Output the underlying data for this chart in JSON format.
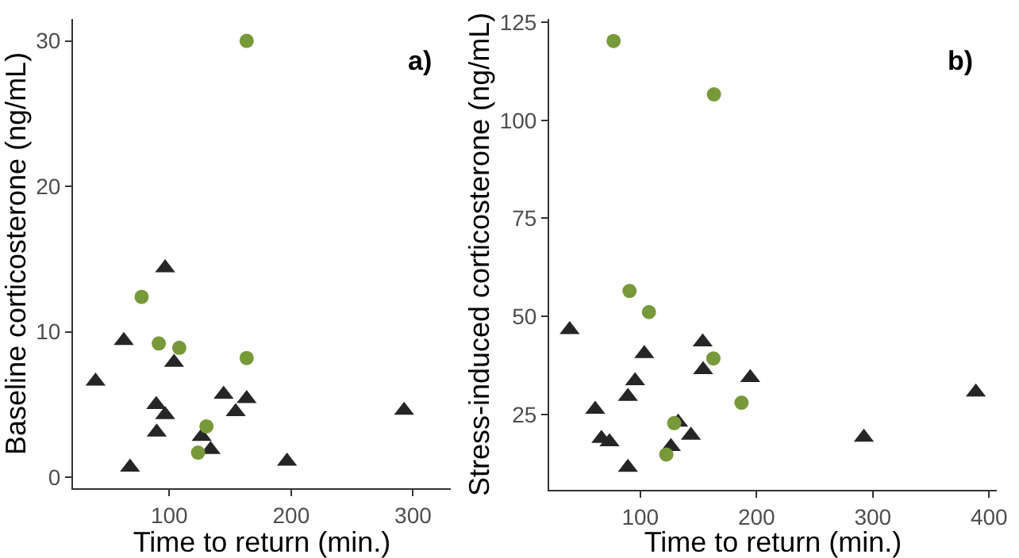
{
  "chart_data": [
    {
      "type": "scatter",
      "xlabel": "Time to return (min.)",
      "ylabel": "Baseline corticosterone (ng/mL)",
      "annotations": [
        "a)"
      ],
      "xlim": [
        21,
        331
      ],
      "xticks": [
        100,
        200,
        300
      ],
      "ylim": [
        -0.75,
        31.5
      ],
      "yticks": [
        0,
        10,
        20,
        30
      ],
      "grid": false,
      "series": [
        {
          "color": "#262626",
          "marker": "triangle",
          "x": [
            39.5,
            62.7,
            67.8,
            96.6,
            89.3,
            96.6,
            89.7,
            103.9,
            126.6,
            133.9,
            144.6,
            154.5,
            163.5,
            196.6,
            292.7
          ],
          "values": [
            6.6,
            9.4,
            0.7,
            14.4,
            5.0,
            4.3,
            3.1,
            7.9,
            2.8,
            1.9,
            5.7,
            4.5,
            5.4,
            1.1,
            4.6
          ]
        },
        {
          "color": "#77993a",
          "marker": "circle",
          "x": [
            163.5,
            77.3,
            91.4,
            108.2,
            163.5,
            130.5,
            123.6
          ],
          "values": [
            30.0,
            12.4,
            9.2,
            8.9,
            8.2,
            3.5,
            1.7
          ]
        }
      ]
    },
    {
      "type": "scatter",
      "xlabel": "Time to return (min.)",
      "ylabel": "Stress-induced corticosterone (ng/mL)",
      "annotations": [
        "b)"
      ],
      "xlim": [
        21.7,
        406.6
      ],
      "xticks": [
        100,
        200,
        300,
        400
      ],
      "ylim": [
        5.8,
        125.8
      ],
      "yticks": [
        25,
        50,
        75,
        100,
        125
      ],
      "grid": false,
      "series": [
        {
          "color": "#262626",
          "marker": "triangle",
          "x": [
            39.3,
            61.3,
            66.6,
            73.6,
            89.4,
            95.6,
            103.5,
            89.4,
            126.4,
            132.6,
            143.6,
            153.7,
            154.1,
            194.6,
            292.3,
            388.6
          ],
          "values": [
            46.6,
            26.3,
            18.9,
            18.0,
            29.6,
            33.6,
            40.5,
            11.5,
            16.8,
            23.0,
            19.7,
            43.5,
            36.4,
            34.4,
            19.2,
            30.7
          ]
        },
        {
          "color": "#77993a",
          "marker": "circle",
          "x": [
            77.1,
            163.4,
            90.8,
            107.5,
            162.9,
            187.1,
            129.2,
            122.4
          ],
          "values": [
            120.2,
            106.6,
            56.5,
            51.1,
            39.3,
            28.0,
            22.8,
            14.8
          ]
        }
      ]
    }
  ]
}
